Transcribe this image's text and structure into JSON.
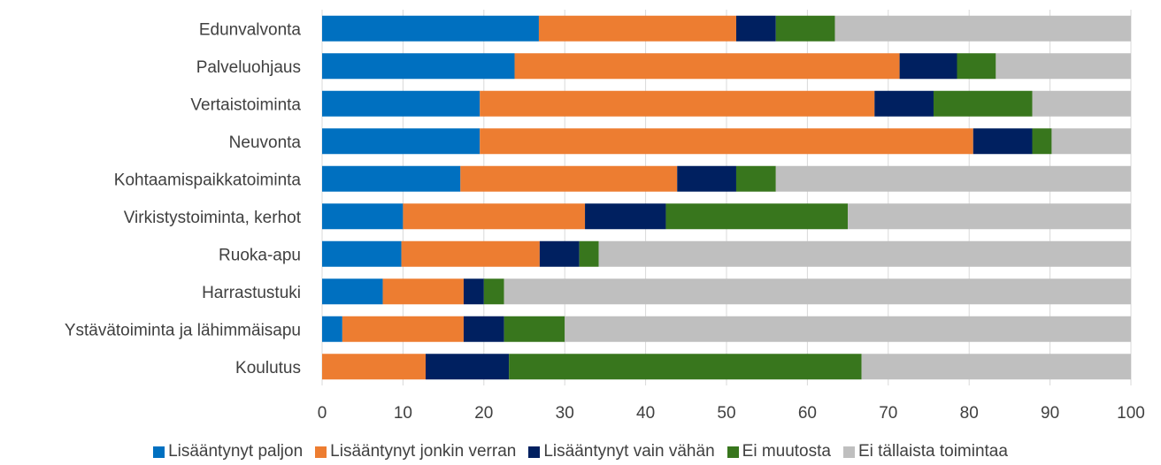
{
  "chart_data": {
    "type": "bar",
    "orientation": "horizontal",
    "stacked": true,
    "categories": [
      "Edunvalvonta",
      "Palveluohjaus",
      "Vertaistoiminta",
      "Neuvonta",
      "Kohtaamispaikkatoiminta",
      "Virkistystoiminta, kerhot",
      "Ruoka-apu",
      "Harrastustuki",
      "Ystävätoiminta ja lähimmäisapu",
      "Koulutus"
    ],
    "series": [
      {
        "name": "Lisääntynyt paljon",
        "color": "#0070C0",
        "values": [
          26.8,
          23.8,
          19.5,
          19.5,
          17.1,
          10.0,
          9.8,
          7.5,
          2.5,
          0
        ]
      },
      {
        "name": "Lisääntynyt jonkin verran",
        "color": "#ED7D31",
        "values": [
          24.4,
          47.6,
          48.8,
          61.0,
          26.8,
          22.5,
          17.1,
          10.0,
          15.0,
          12.8
        ]
      },
      {
        "name": "Lisääntynyt vain vähän",
        "color": "#002060",
        "values": [
          4.9,
          7.1,
          7.3,
          7.3,
          7.3,
          10.0,
          4.9,
          2.5,
          5.0,
          10.3
        ]
      },
      {
        "name": "Ei muutosta",
        "color": "#38761D",
        "values": [
          7.3,
          4.8,
          12.2,
          2.4,
          4.9,
          22.5,
          2.4,
          2.5,
          7.5,
          43.6
        ]
      },
      {
        "name": "Ei tällaista toimintaa",
        "color": "#BFBFBF",
        "values": [
          36.6,
          16.7,
          12.2,
          9.8,
          43.9,
          35.0,
          65.8,
          77.5,
          70.0,
          33.3
        ]
      }
    ],
    "xlim": [
      0,
      100
    ],
    "xticks": [
      "0",
      "10",
      "20",
      "30",
      "40",
      "50",
      "60",
      "70",
      "80",
      "90",
      "100"
    ],
    "grid": true,
    "legend_position": "bottom"
  }
}
